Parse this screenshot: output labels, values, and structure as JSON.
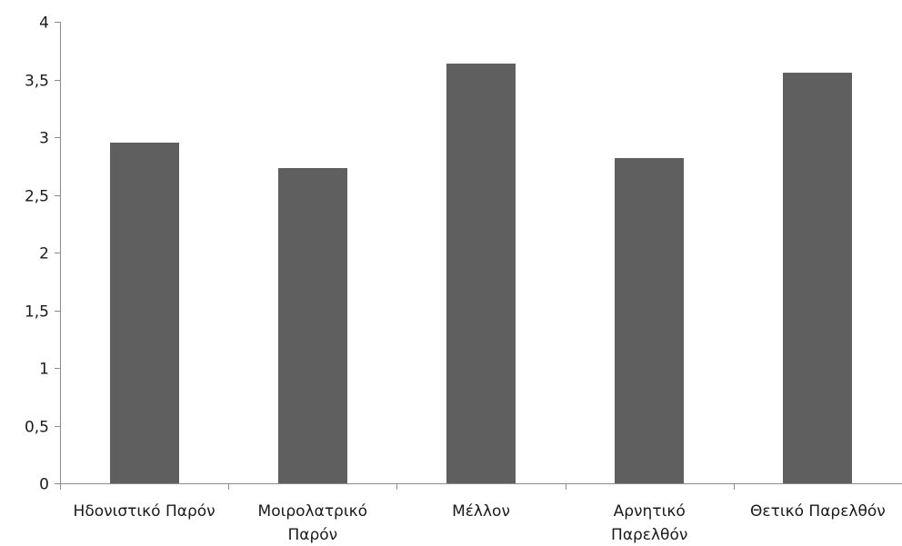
{
  "chart_data": {
    "type": "bar",
    "title": "",
    "xlabel": "",
    "ylabel": "",
    "categories": [
      [
        "Ηδονιστικό Παρόν"
      ],
      [
        "Μοιρολατρικό",
        "Παρόν"
      ],
      [
        "Μέλλον"
      ],
      [
        "Αρνητικό",
        "Παρελθόν"
      ],
      [
        "Θετικό Παρελθόν"
      ]
    ],
    "series": [
      {
        "values": [
          2.95,
          2.73,
          3.64,
          2.82,
          3.56
        ],
        "color": "#5f5f5f"
      }
    ],
    "ylim": [
      0,
      4
    ],
    "yticks": [
      0,
      0.5,
      1,
      1.5,
      2,
      2.5,
      3,
      3.5,
      4
    ],
    "ytick_labels": [
      "0",
      "0,5",
      "1",
      "1,5",
      "2",
      "2,5",
      "3",
      "3,5",
      "4"
    ],
    "grid": false,
    "legend": "none"
  }
}
